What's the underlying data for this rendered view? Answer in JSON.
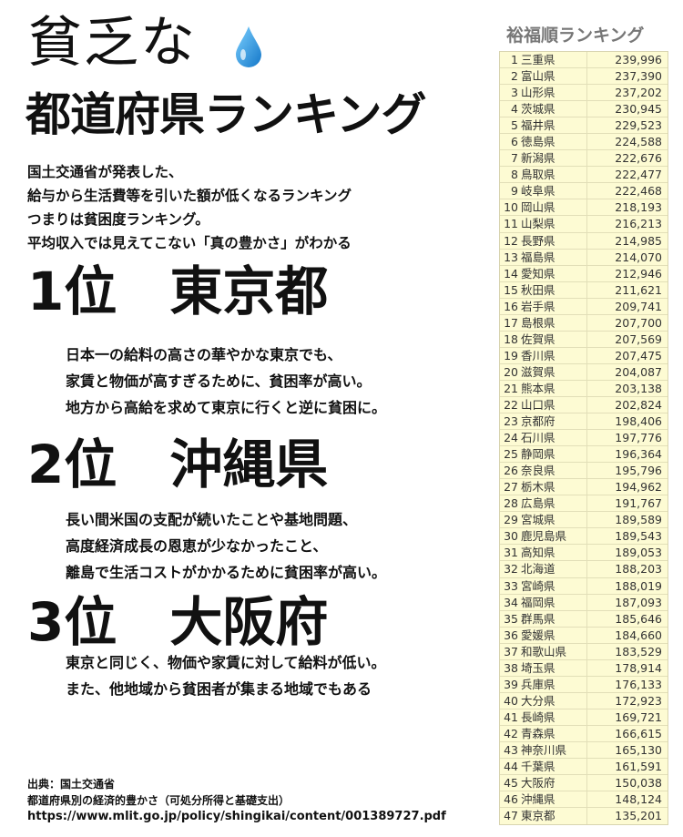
{
  "header": {
    "title_line1": "貧乏な",
    "title_line2": "都道府県ランキング",
    "drop_icon": "water-drop-icon",
    "drop_color": "#2a9be0"
  },
  "intro": [
    "国土交通省が発表した、",
    "給与から生活費等を引いた額が低くなるランキング",
    "つまりは貧困度ランキング。",
    "平均収入では見えてこない「真の豊かさ」がわかる"
  ],
  "ranks": [
    {
      "heading": "1位　東京都",
      "lines": [
        "日本一の給料の高さの華やかな東京でも、",
        "家賃と物価が高すぎるために、貧困率が高い。",
        "地方から高給を求めて東京に行くと逆に貧困に。"
      ]
    },
    {
      "heading": "2位　沖縄県",
      "lines": [
        "長い間米国の支配が続いたことや基地問題、",
        "高度経済成長の恩恵が少なかったこと、",
        "離島で生活コストがかかるために貧困率が高い。"
      ]
    },
    {
      "heading": "3位　大阪府",
      "lines": [
        "東京と同じく、物価や家賃に対して給料が低い。",
        "また、他地域から貧困者が集まる地域でもある"
      ]
    }
  ],
  "source": {
    "line1": "出典：国土交通省",
    "line2": "都道府県別の経済的豊かさ（可処分所得と基礎支出）",
    "url": "https://www.mlit.go.jp/policy/shingikai/content/001389727.pdf"
  },
  "table": {
    "title": "裕福順ランキング",
    "background": "#fdfbd3",
    "rows": [
      [
        "1",
        "三重県",
        "239,996"
      ],
      [
        "2",
        "富山県",
        "237,390"
      ],
      [
        "3",
        "山形県",
        "237,202"
      ],
      [
        "4",
        "茨城県",
        "230,945"
      ],
      [
        "5",
        "福井県",
        "229,523"
      ],
      [
        "6",
        "徳島県",
        "224,588"
      ],
      [
        "7",
        "新潟県",
        "222,676"
      ],
      [
        "8",
        "鳥取県",
        "222,477"
      ],
      [
        "9",
        "岐阜県",
        "222,468"
      ],
      [
        "10",
        "岡山県",
        "218,193"
      ],
      [
        "11",
        "山梨県",
        "216,213"
      ],
      [
        "12",
        "長野県",
        "214,985"
      ],
      [
        "13",
        "福島県",
        "214,070"
      ],
      [
        "14",
        "愛知県",
        "212,946"
      ],
      [
        "15",
        "秋田県",
        "211,621"
      ],
      [
        "16",
        "岩手県",
        "209,741"
      ],
      [
        "17",
        "島根県",
        "207,700"
      ],
      [
        "18",
        "佐賀県",
        "207,569"
      ],
      [
        "19",
        "香川県",
        "207,475"
      ],
      [
        "20",
        "滋賀県",
        "204,087"
      ],
      [
        "21",
        "熊本県",
        "203,138"
      ],
      [
        "22",
        "山口県",
        "202,824"
      ],
      [
        "23",
        "京都府",
        "198,406"
      ],
      [
        "24",
        "石川県",
        "197,776"
      ],
      [
        "25",
        "静岡県",
        "196,364"
      ],
      [
        "26",
        "奈良県",
        "195,796"
      ],
      [
        "27",
        "栃木県",
        "194,962"
      ],
      [
        "28",
        "広島県",
        "191,767"
      ],
      [
        "29",
        "宮城県",
        "189,589"
      ],
      [
        "30",
        "鹿児島県",
        "189,543"
      ],
      [
        "31",
        "高知県",
        "189,053"
      ],
      [
        "32",
        "北海道",
        "188,203"
      ],
      [
        "33",
        "宮崎県",
        "188,019"
      ],
      [
        "34",
        "福岡県",
        "187,093"
      ],
      [
        "35",
        "群馬県",
        "185,646"
      ],
      [
        "36",
        "愛媛県",
        "184,660"
      ],
      [
        "37",
        "和歌山県",
        "183,529"
      ],
      [
        "38",
        "埼玉県",
        "178,914"
      ],
      [
        "39",
        "兵庫県",
        "176,133"
      ],
      [
        "40",
        "大分県",
        "172,923"
      ],
      [
        "41",
        "長崎県",
        "169,721"
      ],
      [
        "42",
        "青森県",
        "166,615"
      ],
      [
        "43",
        "神奈川県",
        "165,130"
      ],
      [
        "44",
        "千葉県",
        "161,591"
      ],
      [
        "45",
        "大阪府",
        "150,038"
      ],
      [
        "46",
        "沖縄県",
        "148,124"
      ],
      [
        "47",
        "東京都",
        "135,201"
      ]
    ]
  }
}
